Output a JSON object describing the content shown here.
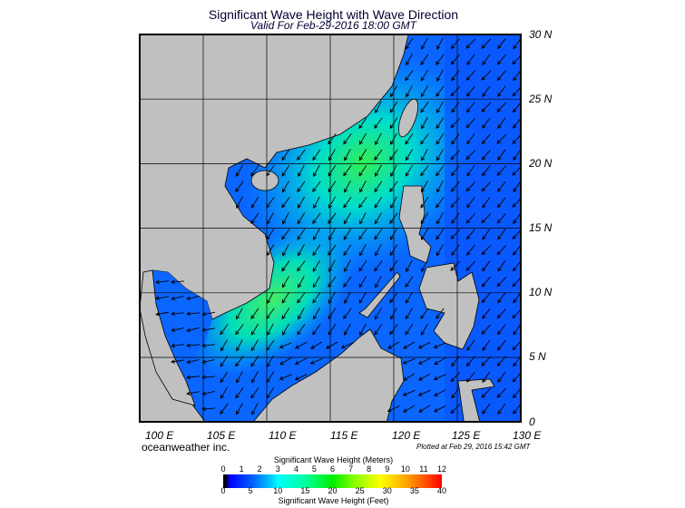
{
  "title": "Significant Wave Height with Wave Direction",
  "valid": "Valid For Feb-29-2016 18:00 GMT",
  "lon_labels": [
    "100 E",
    "105 E",
    "110 E",
    "115 E",
    "120 E",
    "125 E",
    "130 E"
  ],
  "lat_labels": [
    "30 N",
    "25 N",
    "20 N",
    "15 N",
    "10 N",
    "5 N",
    "0"
  ],
  "brand": "oceanweather inc.",
  "plotted": "Plotted at Feb 29, 2016 15:42 GMT",
  "colorbar": {
    "meters_label": "Significant Wave Height (Meters)",
    "feet_label": "Significant Wave Height (Feet)",
    "meters_ticks": [
      "0",
      "1",
      "2",
      "3",
      "4",
      "5",
      "6",
      "7",
      "8",
      "9",
      "10",
      "11",
      "12"
    ],
    "feet_ticks": [
      "0",
      "5",
      "10",
      "15",
      "20",
      "25",
      "30",
      "35",
      "40"
    ]
  },
  "colors": {
    "land": "#c0c0c0",
    "ocean_low": "#0044ff",
    "ocean_mid": "#00ccff",
    "ocean_high": "#33ee44"
  }
}
